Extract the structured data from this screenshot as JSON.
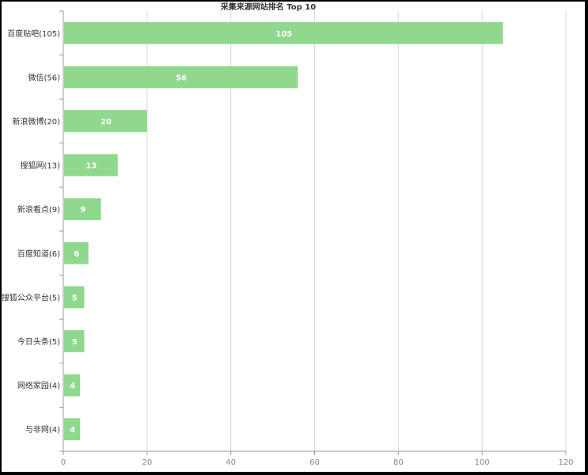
{
  "chart_data": {
    "type": "bar",
    "orientation": "horizontal",
    "title": "采集来源网站排名 Top 10",
    "categories": [
      "百度贴吧(105)",
      "微信(56)",
      "新浪微博(20)",
      "搜狐网(13)",
      "新浪看点(9)",
      "百度知道(6)",
      "搜狐公众平台(5)",
      "今日头条(5)",
      "网络家园(4)",
      "与非网(4)"
    ],
    "values": [
      105,
      56,
      20,
      13,
      9,
      6,
      5,
      5,
      4,
      4
    ],
    "xlim": [
      0,
      120
    ],
    "xticks": [
      0,
      20,
      40,
      60,
      80,
      100,
      120
    ],
    "grid": true,
    "bar_color": "#90d88e",
    "xlabel": "",
    "ylabel": ""
  }
}
